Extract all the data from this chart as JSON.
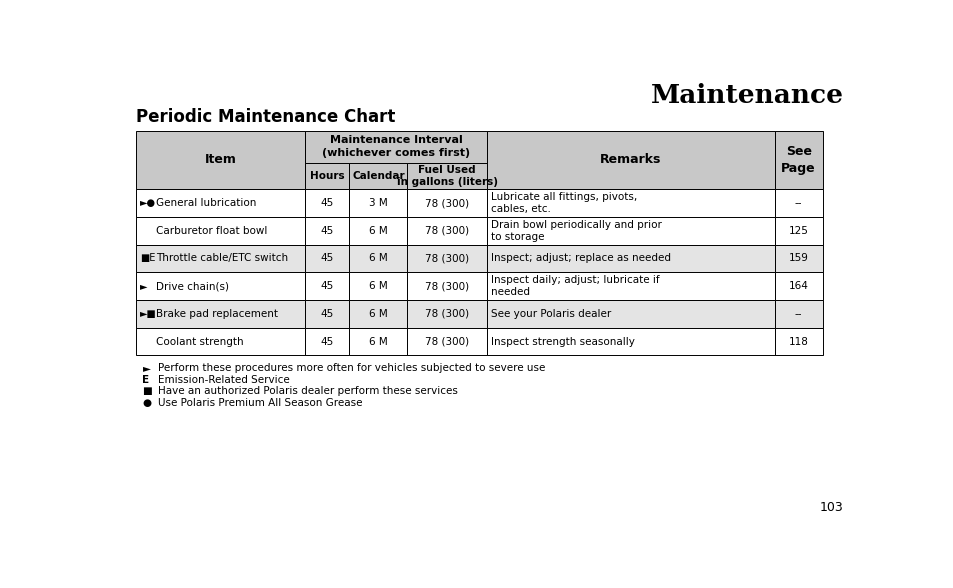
{
  "title": "Maintenance",
  "subtitle": "Periodic Maintenance Chart",
  "page_number": "103",
  "table": {
    "rows": [
      {
        "symbol": "►●",
        "item": "General lubrication",
        "hours": "45",
        "calendar": "3 M",
        "fuel": "78 (300)",
        "remarks": "Lubricate all fittings, pivots,\ncables, etc.",
        "page": "--",
        "shaded": false
      },
      {
        "symbol": "",
        "item": "Carburetor float bowl",
        "hours": "45",
        "calendar": "6 M",
        "fuel": "78 (300)",
        "remarks": "Drain bowl periodically and prior\nto storage",
        "page": "125",
        "shaded": false
      },
      {
        "symbol": "■E",
        "item": "Throttle cable/ETC switch",
        "hours": "45",
        "calendar": "6 M",
        "fuel": "78 (300)",
        "remarks": "Inspect; adjust; replace as needed",
        "page": "159",
        "shaded": true
      },
      {
        "symbol": "►",
        "item": "Drive chain(s)",
        "hours": "45",
        "calendar": "6 M",
        "fuel": "78 (300)",
        "remarks": "Inspect daily; adjust; lubricate if\nneeded",
        "page": "164",
        "shaded": false
      },
      {
        "symbol": "►■",
        "item": "Brake pad replacement",
        "hours": "45",
        "calendar": "6 M",
        "fuel": "78 (300)",
        "remarks": "See your Polaris dealer",
        "page": "--",
        "shaded": true
      },
      {
        "symbol": "",
        "item": "Coolant strength",
        "hours": "45",
        "calendar": "6 M",
        "fuel": "78 (300)",
        "remarks": "Inspect strength seasonally",
        "page": "118",
        "shaded": false
      }
    ]
  },
  "footnotes": [
    [
      "►",
      "Perform these procedures more often for vehicles subjected to severe use"
    ],
    [
      "E",
      "Emission-Related Service"
    ],
    [
      "■",
      "Have an authorized Polaris dealer perform these services"
    ],
    [
      "●",
      "Use Polaris Premium All Season Grease"
    ]
  ],
  "bg_color": "#ffffff",
  "header_bg": "#c8c8c8",
  "shaded_bg": "#e4e4e4",
  "border_color": "#000000",
  "text_color": "#000000",
  "title_fontsize": 19,
  "subtitle_fontsize": 12,
  "table_fontsize": 7.5,
  "footnote_fontsize": 7.5
}
